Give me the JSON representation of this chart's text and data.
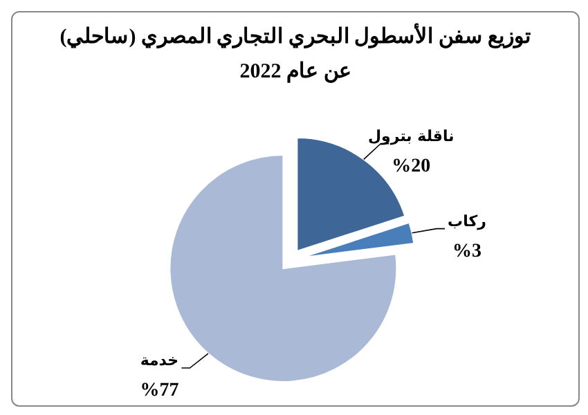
{
  "chart_data": {
    "type": "pie",
    "title": "توزيع سفن الأسطول البحري التجاري المصري (ساحلي)",
    "subtitle": "عن عام  2022",
    "categories": [
      "ناقلة بترول",
      "ركاب",
      "خدمة"
    ],
    "values": [
      20,
      3,
      77
    ],
    "colors": [
      "#3e6798",
      "#4a7ebb",
      "#a9b9d6"
    ],
    "value_labels": [
      "%20",
      "%3",
      "%77"
    ]
  }
}
